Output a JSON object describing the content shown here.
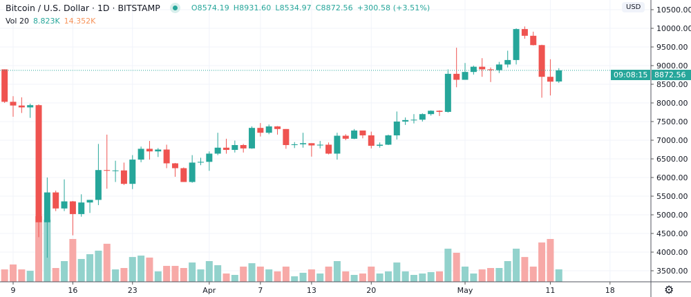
{
  "header": {
    "title": "Bitcoin / U.S. Dollar · 1D · BITSTAMP",
    "open": "O8574.19",
    "high": "H8931.60",
    "low": "L8534.97",
    "close": "C8872.56",
    "change": "+300.58 (+3.51%)"
  },
  "volume_legend": {
    "label": "Vol 20",
    "value": "8.823K",
    "ma": "14.352K"
  },
  "price_scale": {
    "currency": "USD",
    "last_price": "8872.56",
    "countdown": "09:08:15",
    "ticks": [
      "3500.00",
      "4000.00",
      "4500.00",
      "5000.00",
      "5500.00",
      "6000.00",
      "6500.00",
      "7000.00",
      "7500.00",
      "8000.00",
      "8500.00",
      "9000.00",
      "9500.00",
      "10000.00",
      "10500.00"
    ]
  },
  "time_scale": {
    "ticks": [
      {
        "label": "9",
        "date": "2020-03-09"
      },
      {
        "label": "16",
        "date": "2020-03-16"
      },
      {
        "label": "23",
        "date": "2020-03-23"
      },
      {
        "label": "Apr",
        "date": "2020-04-01"
      },
      {
        "label": "7",
        "date": "2020-04-07"
      },
      {
        "label": "13",
        "date": "2020-04-13"
      },
      {
        "label": "20",
        "date": "2020-04-20"
      },
      {
        "label": "May",
        "date": "2020-05-01"
      },
      {
        "label": "11",
        "date": "2020-05-11"
      },
      {
        "label": "18",
        "date": "2020-05-18"
      }
    ]
  },
  "colors": {
    "up": "#26a69a",
    "down": "#ef5350",
    "up_volume": "#92d2cc",
    "down_volume": "#f7a9a7",
    "grid": "#f0f3fa"
  },
  "icons": {
    "settings": "gear-icon"
  },
  "chart_data": {
    "type": "candlestick",
    "start_date": "2020-03-08",
    "ohlc": [
      [
        8900,
        8900,
        8000,
        8030
      ],
      [
        8030,
        8180,
        7630,
        7930
      ],
      [
        7930,
        8150,
        7730,
        7880
      ],
      [
        7880,
        7980,
        7600,
        7940
      ],
      [
        7940,
        7960,
        4400,
        4800
      ],
      [
        4800,
        6000,
        3850,
        5600
      ],
      [
        5600,
        5650,
        5100,
        5170
      ],
      [
        5170,
        5950,
        5100,
        5360
      ],
      [
        5360,
        5370,
        4450,
        5020
      ],
      [
        5020,
        5550,
        4950,
        5330
      ],
      [
        5330,
        5400,
        5050,
        5400
      ],
      [
        5400,
        6900,
        5260,
        6200
      ],
      [
        6200,
        7150,
        5700,
        6180
      ],
      [
        6180,
        6450,
        5880,
        6190
      ],
      [
        6190,
        6400,
        5800,
        5830
      ],
      [
        5830,
        6600,
        5690,
        6480
      ],
      [
        6480,
        6830,
        6410,
        6770
      ],
      [
        6770,
        6980,
        6480,
        6700
      ],
      [
        6700,
        6790,
        6550,
        6750
      ],
      [
        6750,
        6880,
        6250,
        6380
      ],
      [
        6380,
        6390,
        6020,
        6250
      ],
      [
        6250,
        6270,
        5880,
        5880
      ],
      [
        5880,
        6600,
        5860,
        6400
      ],
      [
        6400,
        6530,
        6330,
        6420
      ],
      [
        6420,
        6700,
        6180,
        6640
      ],
      [
        6640,
        7200,
        6600,
        6800
      ],
      [
        6800,
        7040,
        6640,
        6740
      ],
      [
        6740,
        6990,
        6670,
        6870
      ],
      [
        6870,
        6900,
        6670,
        6780
      ],
      [
        6780,
        7370,
        6770,
        7330
      ],
      [
        7330,
        7460,
        7100,
        7200
      ],
      [
        7200,
        7420,
        7160,
        7370
      ],
      [
        7370,
        7380,
        7150,
        7300
      ],
      [
        7300,
        7300,
        6770,
        6870
      ],
      [
        6870,
        6950,
        6790,
        6890
      ],
      [
        6890,
        7200,
        6800,
        6920
      ],
      [
        6920,
        6920,
        6560,
        6860
      ],
      [
        6860,
        6980,
        6780,
        6880
      ],
      [
        6880,
        6940,
        6620,
        6640
      ],
      [
        6640,
        7200,
        6480,
        7120
      ],
      [
        7120,
        7160,
        7000,
        7040
      ],
      [
        7040,
        7300,
        7030,
        7260
      ],
      [
        7260,
        7260,
        7050,
        7130
      ],
      [
        7130,
        7230,
        6780,
        6850
      ],
      [
        6850,
        6940,
        6800,
        6880
      ],
      [
        6880,
        7150,
        6870,
        7130
      ],
      [
        7130,
        7770,
        7020,
        7500
      ],
      [
        7500,
        7610,
        7410,
        7540
      ],
      [
        7540,
        7700,
        7450,
        7550
      ],
      [
        7550,
        7720,
        7500,
        7700
      ],
      [
        7700,
        7800,
        7660,
        7790
      ],
      [
        7790,
        7800,
        7650,
        7760
      ],
      [
        7760,
        8900,
        7740,
        8780
      ],
      [
        8780,
        9480,
        8420,
        8620
      ],
      [
        8620,
        9070,
        8620,
        8830
      ],
      [
        8830,
        9000,
        8760,
        8970
      ],
      [
        8970,
        9200,
        8700,
        8900
      ],
      [
        8900,
        8950,
        8560,
        8880
      ],
      [
        8880,
        9100,
        8800,
        9030
      ],
      [
        9030,
        9400,
        8950,
        9150
      ],
      [
        9150,
        10000,
        9030,
        9980
      ],
      [
        9980,
        10050,
        9720,
        9800
      ],
      [
        9800,
        9910,
        9540,
        9550
      ],
      [
        9550,
        9560,
        8140,
        8700
      ],
      [
        8700,
        9170,
        8200,
        8570
      ],
      [
        8574.19,
        8931.6,
        8534.97,
        8872.56
      ]
    ],
    "volume_k": [
      8.8,
      12.3,
      8.8,
      7.8,
      46.6,
      44.1,
      9.8,
      14.7,
      30.4,
      16.2,
      19.6,
      22.1,
      27,
      8.8,
      9.8,
      17.6,
      18.6,
      17.2,
      7.4,
      11.3,
      11.3,
      9.8,
      13.7,
      8.8,
      14.7,
      11.8,
      5.9,
      4.9,
      10.8,
      13.2,
      10.8,
      8.8,
      7.4,
      10.8,
      3.9,
      6.4,
      8.8,
      5.9,
      10.8,
      14.7,
      7.4,
      4.9,
      5.9,
      10.8,
      5.9,
      7.4,
      13.7,
      7.4,
      4.9,
      5.9,
      6.9,
      7.4,
      23.5,
      20.6,
      10.8,
      5.9,
      8.8,
      9.8,
      9.8,
      14.7,
      23.5,
      17.6,
      10.8,
      27.9,
      30.4,
      8.823
    ]
  }
}
